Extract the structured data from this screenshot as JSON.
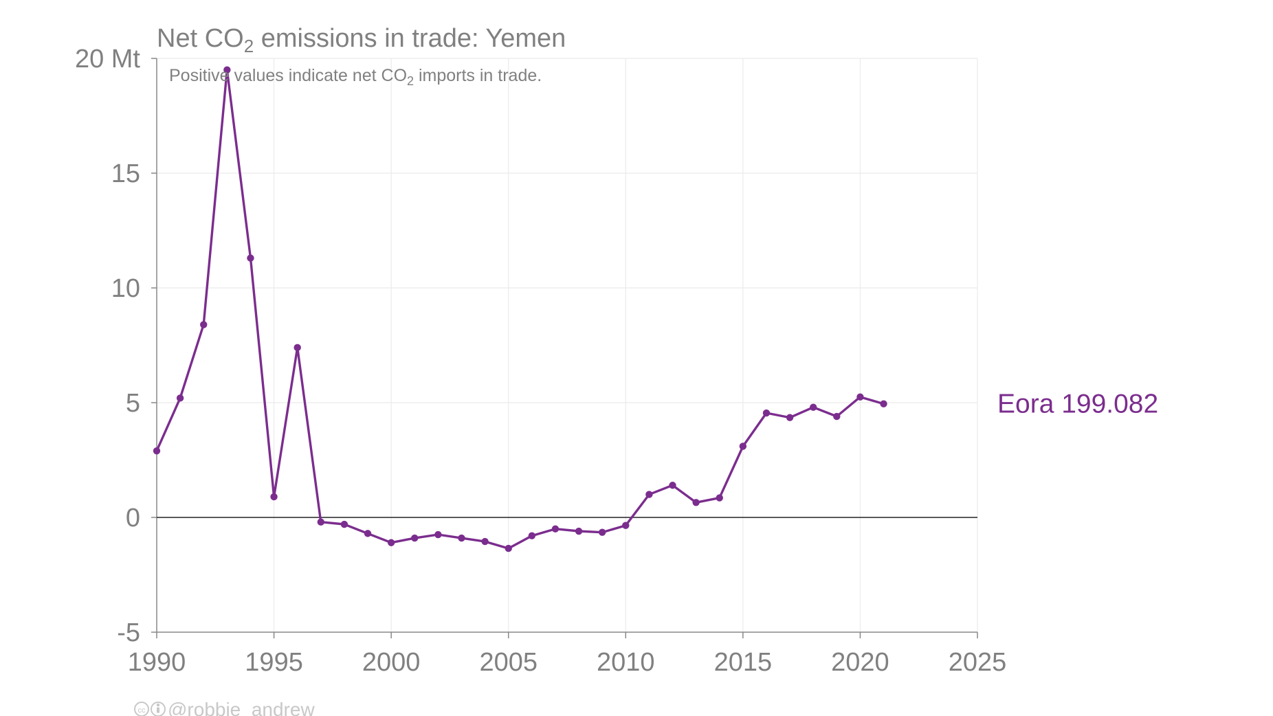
{
  "title": {
    "main_pre": "Net CO",
    "main_sub": "2",
    "main_post": " emissions in trade: Yemen",
    "sub_pre": "Positive values indicate net CO",
    "sub_sub": "2",
    "sub_post": " imports in trade."
  },
  "y_unit_label": "20 Mt",
  "credit": "@robbie_andrew",
  "colors": {
    "series": "#7b2d8e",
    "text": "#808080",
    "grid": "#ebebeb",
    "zero": "#222222",
    "credit": "#c8c8c8"
  },
  "chart_data": {
    "type": "line",
    "title": "Net CO2 emissions in trade: Yemen",
    "subtitle": "Positive values indicate net CO2 imports in trade.",
    "xlabel": "",
    "ylabel": "",
    "xlim": [
      1990,
      2025
    ],
    "ylim": [
      -5,
      20
    ],
    "x_ticks": [
      1990,
      1995,
      2000,
      2005,
      2010,
      2015,
      2020,
      2025
    ],
    "y_ticks": [
      -5,
      0,
      5,
      10,
      15,
      20
    ],
    "y_tick_labels": [
      "-5",
      "0",
      "5",
      "10",
      "15",
      "20 Mt"
    ],
    "grid": true,
    "series": [
      {
        "name": "Eora",
        "end_label": "Eora 199.082",
        "color": "#7b2d8e",
        "x": [
          1990,
          1991,
          1992,
          1993,
          1994,
          1995,
          1996,
          1997,
          1998,
          1999,
          2000,
          2001,
          2002,
          2003,
          2004,
          2005,
          2006,
          2007,
          2008,
          2009,
          2010,
          2011,
          2012,
          2013,
          2014,
          2015,
          2016,
          2017,
          2018,
          2019,
          2020,
          2021
        ],
        "values": [
          2.9,
          5.2,
          8.4,
          19.5,
          11.3,
          0.9,
          7.4,
          -0.2,
          -0.3,
          -0.7,
          -1.1,
          -0.9,
          -0.75,
          -0.9,
          -1.05,
          -1.35,
          -0.8,
          -0.5,
          -0.6,
          -0.65,
          -0.35,
          1.0,
          1.4,
          0.65,
          0.85,
          3.1,
          4.55,
          4.35,
          4.8,
          4.4,
          5.25,
          4.95
        ]
      }
    ]
  }
}
